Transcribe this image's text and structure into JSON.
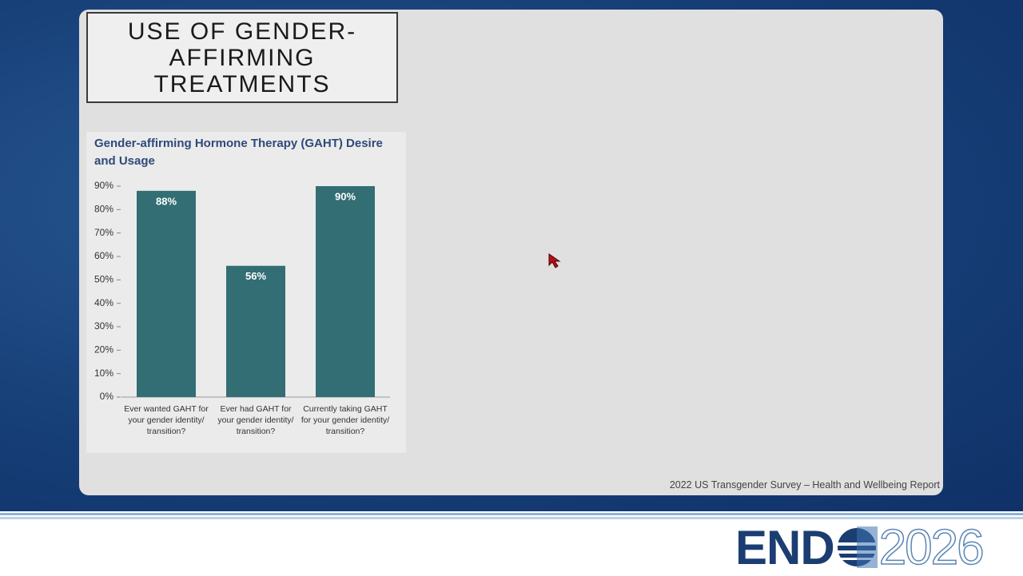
{
  "slide": {
    "title": "USE OF GENDER-AFFIRMING TREATMENTS"
  },
  "chart_data": {
    "type": "bar",
    "title": "Gender-affirming Hormone Therapy (GAHT) Desire and Usage",
    "categories": [
      "Ever wanted GAHT for your gender identity/ transition?",
      "Ever had GAHT for your gender identity/ transition?",
      "Currently taking GAHT for your gender identity/ transition?"
    ],
    "values": [
      88,
      56,
      90
    ],
    "value_labels": [
      "88%",
      "56%",
      "90%"
    ],
    "color": "#336e74",
    "ylim": [
      0,
      90
    ],
    "yticks": [
      {
        "value": 0,
        "label": "0%"
      },
      {
        "value": 10,
        "label": "10%"
      },
      {
        "value": 20,
        "label": "20%"
      },
      {
        "value": 30,
        "label": "30%"
      },
      {
        "value": 40,
        "label": "40%"
      },
      {
        "value": 50,
        "label": "50%"
      },
      {
        "value": 60,
        "label": "60%"
      },
      {
        "value": 70,
        "label": "70%"
      },
      {
        "value": 80,
        "label": "80%"
      },
      {
        "value": 90,
        "label": "90%"
      }
    ]
  },
  "source": "2022 US Transgender Survey – Health and Wellbeing Report",
  "logo": {
    "brand": "END",
    "year": "2026"
  }
}
